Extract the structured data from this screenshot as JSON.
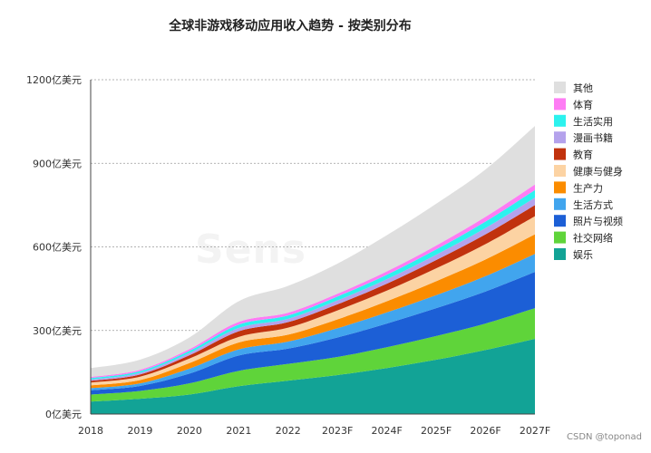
{
  "chart_data": {
    "type": "area",
    "stacked": true,
    "title": "全球非游戏移动应用收入趋势 - 按类别分布",
    "categories": [
      "2018",
      "2019",
      "2020",
      "2021",
      "2022",
      "2023F",
      "2024F",
      "2025F",
      "2026F",
      "2027F"
    ],
    "y_ticks": [
      "0亿美元",
      "300亿美元",
      "600亿美元",
      "900亿美元",
      "1200亿美元"
    ],
    "ylim": [
      0,
      1200
    ],
    "grid": true,
    "legend_position": "right",
    "series": [
      {
        "name": "娱乐",
        "color": "#12a396",
        "values": [
          45,
          55,
          70,
          100,
          120,
          140,
          165,
          195,
          230,
          270
        ]
      },
      {
        "name": "社交网络",
        "color": "#5fd43a",
        "values": [
          25,
          28,
          40,
          55,
          60,
          65,
          75,
          85,
          95,
          110
        ]
      },
      {
        "name": "照片与视频",
        "color": "#1c5fd6",
        "values": [
          15,
          18,
          35,
          55,
          55,
          70,
          85,
          100,
          115,
          130
        ]
      },
      {
        "name": "生活方式",
        "color": "#41a5ee",
        "values": [
          8,
          9,
          18,
          22,
          25,
          33,
          40,
          47,
          55,
          65
        ]
      },
      {
        "name": "生产力",
        "color": "#fb8c00",
        "values": [
          10,
          12,
          20,
          25,
          25,
          32,
          40,
          50,
          60,
          70
        ]
      },
      {
        "name": "健康与健身",
        "color": "#fcd3a3",
        "values": [
          10,
          12,
          16,
          20,
          25,
          32,
          38,
          46,
          55,
          65
        ]
      },
      {
        "name": "教育",
        "color": "#c1320d",
        "values": [
          6,
          8,
          12,
          20,
          20,
          22,
          25,
          30,
          35,
          40
        ]
      },
      {
        "name": "漫画书籍",
        "color": "#b4a2ec",
        "values": [
          5,
          6,
          8,
          12,
          12,
          14,
          16,
          19,
          23,
          27
        ]
      },
      {
        "name": "生活实用",
        "color": "#2cf2ee",
        "values": [
          5,
          6,
          8,
          12,
          12,
          14,
          16,
          19,
          23,
          27
        ]
      },
      {
        "name": "体育",
        "color": "#fe7cf4",
        "values": [
          4,
          5,
          6,
          10,
          10,
          10,
          12,
          14,
          17,
          20
        ]
      },
      {
        "name": "其他",
        "color": "#dfdfdf",
        "values": [
          32,
          36,
          42,
          74,
          96,
          108,
          130,
          150,
          170,
          210
        ]
      }
    ]
  },
  "watermark": "CSDN @toponad",
  "bg_watermark": "Sens"
}
